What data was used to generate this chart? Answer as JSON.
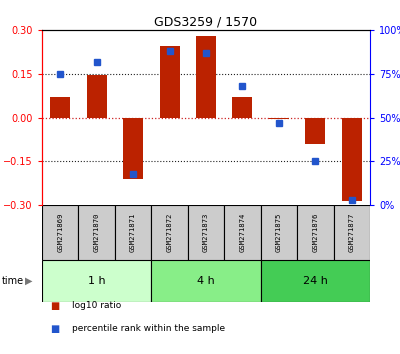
{
  "title": "GDS3259 / 1570",
  "samples": [
    "GSM271869",
    "GSM271870",
    "GSM271871",
    "GSM271872",
    "GSM271873",
    "GSM271874",
    "GSM271875",
    "GSM271876",
    "GSM271877"
  ],
  "log10_ratio": [
    0.07,
    0.145,
    -0.21,
    0.245,
    0.28,
    0.07,
    -0.005,
    -0.09,
    -0.285
  ],
  "percentile_rank": [
    75,
    82,
    18,
    88,
    87,
    68,
    47,
    25,
    3
  ],
  "ylim_left": [
    -0.3,
    0.3
  ],
  "ylim_right": [
    0,
    100
  ],
  "yticks_left": [
    -0.3,
    -0.15,
    0,
    0.15,
    0.3
  ],
  "yticks_right": [
    0,
    25,
    50,
    75,
    100
  ],
  "bar_color": "#bb2200",
  "dot_color": "#2255cc",
  "zero_line_color": "#cc2222",
  "dotted_line_color": "#222222",
  "groups": [
    {
      "label": "1 h",
      "samples": [
        0,
        1,
        2
      ],
      "color": "#ccffcc"
    },
    {
      "label": "4 h",
      "samples": [
        3,
        4,
        5
      ],
      "color": "#88ee88"
    },
    {
      "label": "24 h",
      "samples": [
        6,
        7,
        8
      ],
      "color": "#44cc55"
    }
  ],
  "bar_width": 0.55,
  "label_bg": "#cccccc",
  "time_arrow_color": "#777777",
  "legend_items": [
    {
      "color": "#bb2200",
      "label": "log10 ratio"
    },
    {
      "color": "#2255cc",
      "label": "percentile rank within the sample"
    }
  ]
}
